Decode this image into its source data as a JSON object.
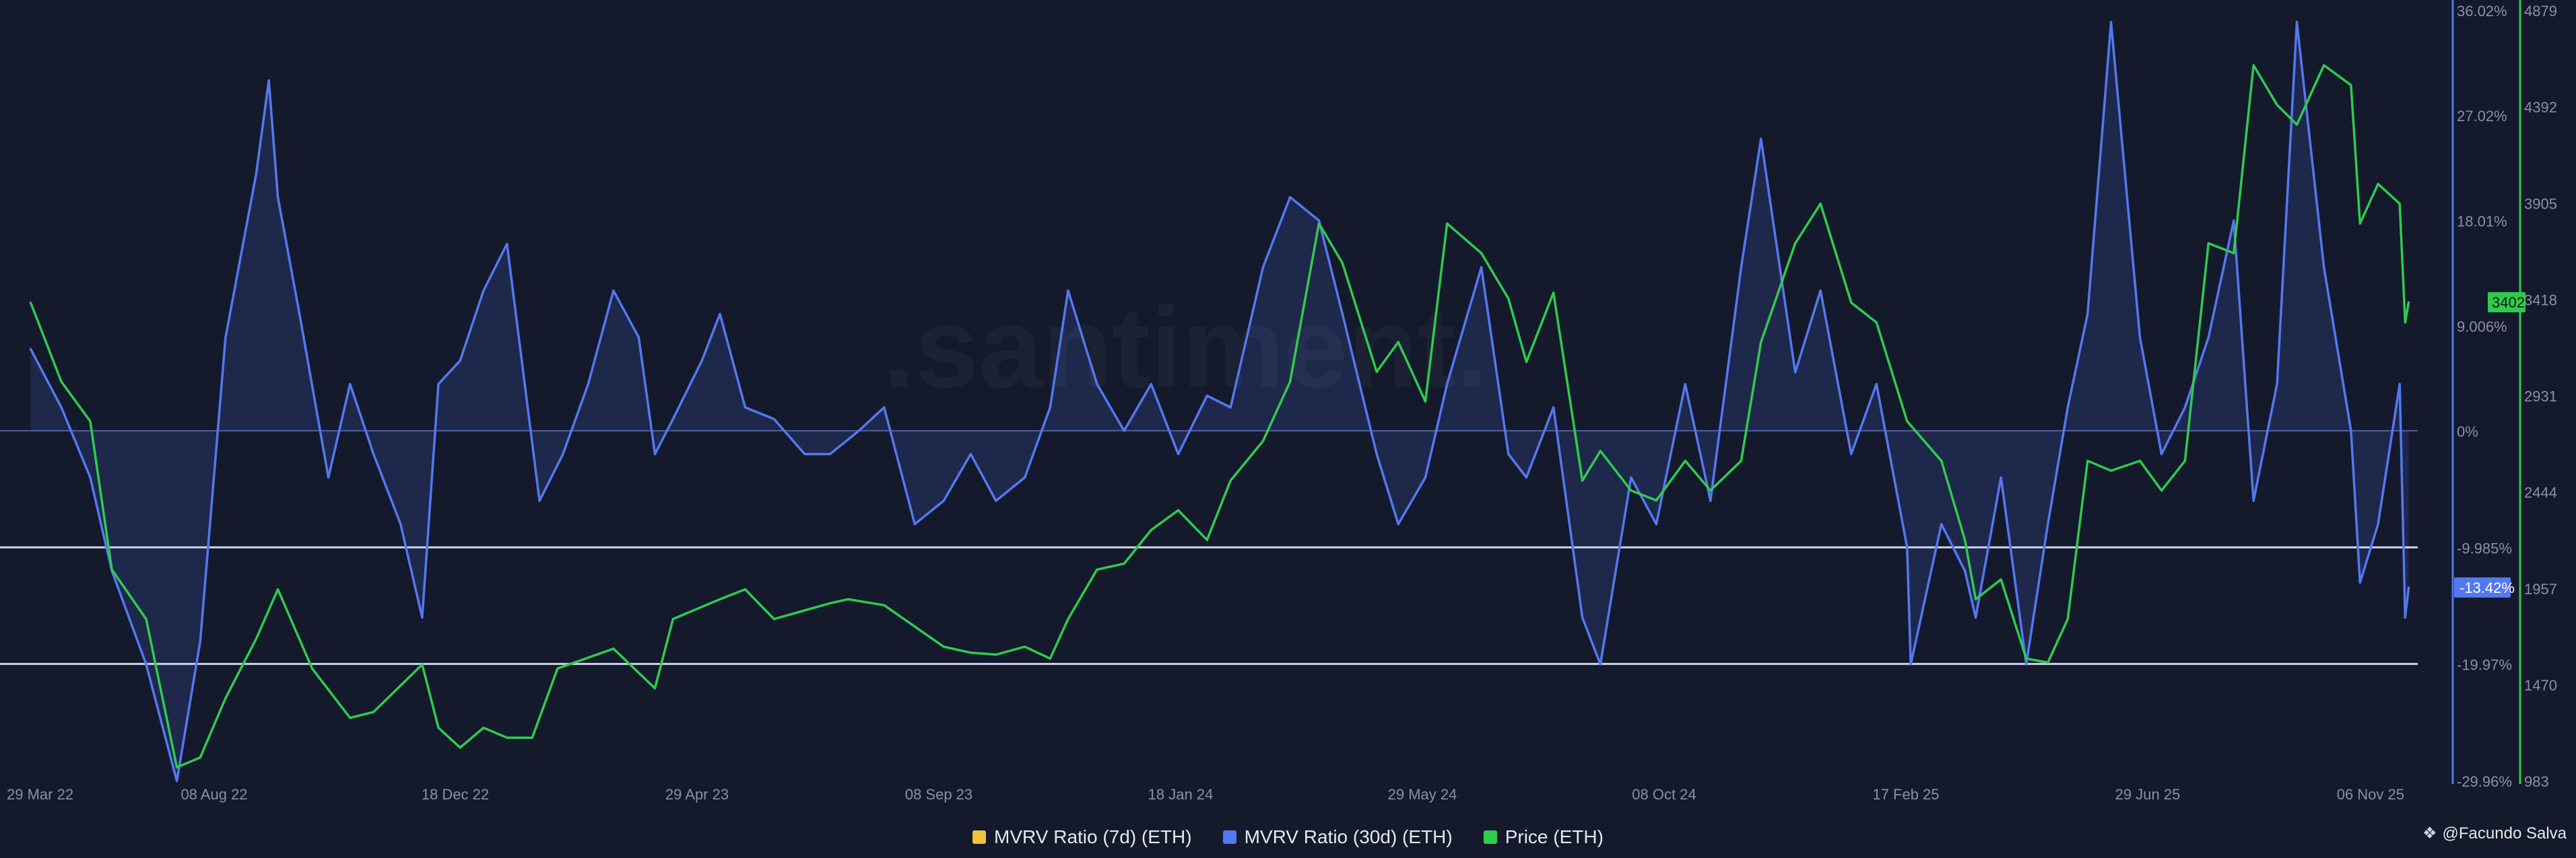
{
  "colors": {
    "background": "#141a2c",
    "mvrv7d": "#f3c23c",
    "mvrv30d": "#5478f0",
    "price": "#2fcb4e",
    "reference_line": "#cdd3ea",
    "axis_text": "#8b91a3"
  },
  "watermark": ".santiment.",
  "attribution": {
    "icon": "share-icon",
    "text": "@Facundo Salva"
  },
  "legend": [
    {
      "label": "MVRV Ratio (7d) (ETH)",
      "color": "#f3c23c"
    },
    {
      "label": "MVRV Ratio (30d) (ETH)",
      "color": "#5478f0"
    },
    {
      "label": "Price (ETH)",
      "color": "#2fcb4e"
    }
  ],
  "chart_data": {
    "type": "line",
    "title": "",
    "x_ticks": [
      "29 Mar 22",
      "08 Aug 22",
      "18 Dec 22",
      "29 Apr 23",
      "08 Sep 23",
      "18 Jan 24",
      "29 May 24",
      "08 Oct 24",
      "17 Feb 25",
      "29 Jun 25",
      "06 Nov 25"
    ],
    "mvrv_axis": {
      "ticks": [
        "36.02%",
        "27.02%",
        "18.01%",
        "9.006%",
        "0%",
        "-9.985%",
        "-19.97%",
        "-29.96%"
      ],
      "range": [
        -29.96,
        36.02
      ],
      "current_label": "-13.42%"
    },
    "price_axis": {
      "ticks": [
        "4879",
        "4392",
        "3905",
        "3418",
        "2931",
        "2444",
        "1957",
        "1470",
        "983"
      ],
      "range": [
        983,
        4879
      ],
      "current_label": "3402"
    },
    "reference_lines": [
      -9.985,
      -19.97
    ],
    "series": [
      {
        "name": "MVRV Ratio (30d) (ETH)",
        "axis": "mvrv",
        "x": [
          "2022-03-29",
          "2022-04-15",
          "2022-05-01",
          "2022-05-13",
          "2022-06-01",
          "2022-06-18",
          "2022-07-01",
          "2022-07-15",
          "2022-08-01",
          "2022-08-08",
          "2022-08-13",
          "2022-08-25",
          "2022-09-10",
          "2022-09-22",
          "2022-10-05",
          "2022-10-20",
          "2022-11-01",
          "2022-11-10",
          "2022-11-22",
          "2022-12-05",
          "2022-12-18",
          "2023-01-05",
          "2023-01-18",
          "2023-02-01",
          "2023-02-15",
          "2023-03-01",
          "2023-03-10",
          "2023-03-20",
          "2023-04-05",
          "2023-04-15",
          "2023-04-29",
          "2023-05-15",
          "2023-06-01",
          "2023-06-15",
          "2023-07-01",
          "2023-07-15",
          "2023-08-01",
          "2023-08-17",
          "2023-09-01",
          "2023-09-15",
          "2023-10-01",
          "2023-10-15",
          "2023-10-25",
          "2023-11-10",
          "2023-11-25",
          "2023-12-10",
          "2023-12-25",
          "2024-01-10",
          "2024-01-23",
          "2024-02-10",
          "2024-02-25",
          "2024-03-12",
          "2024-03-25",
          "2024-04-13",
          "2024-04-25",
          "2024-05-10",
          "2024-05-22",
          "2024-06-10",
          "2024-06-25",
          "2024-07-05",
          "2024-07-20",
          "2024-08-05",
          "2024-08-15",
          "2024-09-01",
          "2024-09-15",
          "2024-10-01",
          "2024-10-15",
          "2024-11-01",
          "2024-11-12",
          "2024-12-01",
          "2024-12-15",
          "2025-01-01",
          "2025-01-15",
          "2025-02-01",
          "2025-02-03",
          "2025-02-20",
          "2025-03-05",
          "2025-03-11",
          "2025-03-25",
          "2025-04-08",
          "2025-04-20",
          "2025-05-01",
          "2025-05-12",
          "2025-05-25",
          "2025-06-10",
          "2025-06-22",
          "2025-07-05",
          "2025-07-18",
          "2025-08-01",
          "2025-08-12",
          "2025-08-25",
          "2025-09-05",
          "2025-09-20",
          "2025-10-05",
          "2025-10-10",
          "2025-10-20",
          "2025-11-01",
          "2025-11-04",
          "2025-11-06"
        ],
        "values": [
          7,
          2,
          -4,
          -12,
          -20,
          -30,
          -18,
          8,
          22,
          30,
          20,
          10,
          -4,
          4,
          -2,
          -8,
          -16,
          4,
          6,
          12,
          16,
          -6,
          -2,
          4,
          12,
          8,
          -2,
          1,
          6,
          10,
          2,
          1,
          -2,
          -2,
          0,
          2,
          -8,
          -6,
          -2,
          -6,
          -4,
          2,
          12,
          4,
          0,
          4,
          -2,
          3,
          2,
          14,
          20,
          18,
          10,
          -2,
          -8,
          -4,
          4,
          14,
          -2,
          -4,
          2,
          -16,
          -20,
          -4,
          -8,
          4,
          -6,
          14,
          25,
          5,
          12,
          -2,
          4,
          -10,
          -20,
          -8,
          -12,
          -16,
          -4,
          -20,
          -8,
          2,
          10,
          35,
          8,
          -2,
          2,
          8,
          18,
          -6,
          4,
          35,
          14,
          0,
          -13,
          -8,
          4,
          -16,
          -13.42
        ]
      },
      {
        "name": "Price (ETH)",
        "axis": "price",
        "x": [
          "2022-03-29",
          "2022-04-15",
          "2022-05-01",
          "2022-05-13",
          "2022-06-01",
          "2022-06-18",
          "2022-07-01",
          "2022-07-15",
          "2022-08-01",
          "2022-08-13",
          "2022-09-01",
          "2022-09-22",
          "2022-10-05",
          "2022-11-01",
          "2022-11-10",
          "2022-11-22",
          "2022-12-05",
          "2022-12-18",
          "2023-01-01",
          "2023-01-15",
          "2023-02-15",
          "2023-03-10",
          "2023-03-20",
          "2023-04-15",
          "2023-04-29",
          "2023-05-15",
          "2023-06-15",
          "2023-06-25",
          "2023-07-15",
          "2023-08-17",
          "2023-09-01",
          "2023-09-15",
          "2023-10-01",
          "2023-10-15",
          "2023-10-25",
          "2023-11-10",
          "2023-11-25",
          "2023-12-10",
          "2023-12-25",
          "2024-01-10",
          "2024-01-23",
          "2024-02-10",
          "2024-02-25",
          "2024-03-12",
          "2024-03-25",
          "2024-04-13",
          "2024-04-25",
          "2024-05-10",
          "2024-05-22",
          "2024-06-10",
          "2024-06-25",
          "2024-07-05",
          "2024-07-20",
          "2024-08-05",
          "2024-08-15",
          "2024-09-01",
          "2024-09-15",
          "2024-10-01",
          "2024-10-15",
          "2024-11-01",
          "2024-11-12",
          "2024-12-01",
          "2024-12-15",
          "2025-01-01",
          "2025-01-15",
          "2025-02-01",
          "2025-02-20",
          "2025-03-05",
          "2025-03-11",
          "2025-03-25",
          "2025-04-08",
          "2025-04-20",
          "2025-05-01",
          "2025-05-12",
          "2025-05-25",
          "2025-06-10",
          "2025-06-22",
          "2025-07-05",
          "2025-07-18",
          "2025-08-01",
          "2025-08-12",
          "2025-08-25",
          "2025-09-05",
          "2025-09-20",
          "2025-10-05",
          "2025-10-10",
          "2025-10-20",
          "2025-11-01",
          "2025-11-04",
          "2025-11-06"
        ],
        "values": [
          3400,
          3000,
          2800,
          2050,
          1800,
          1050,
          1100,
          1400,
          1700,
          1950,
          1550,
          1300,
          1330,
          1570,
          1250,
          1150,
          1250,
          1200,
          1200,
          1550,
          1650,
          1450,
          1800,
          1900,
          1950,
          1800,
          1880,
          1900,
          1870,
          1660,
          1630,
          1620,
          1660,
          1600,
          1800,
          2050,
          2080,
          2250,
          2350,
          2200,
          2500,
          2700,
          3000,
          3800,
          3600,
          3050,
          3200,
          2900,
          3800,
          3650,
          3420,
          3100,
          3450,
          2500,
          2650,
          2450,
          2400,
          2600,
          2450,
          2600,
          3200,
          3700,
          3900,
          3400,
          3300,
          2800,
          2600,
          2200,
          1900,
          2000,
          1600,
          1580,
          1800,
          2600,
          2550,
          2600,
          2450,
          2600,
          3700,
          3650,
          4600,
          4400,
          4300,
          4600,
          4500,
          3800,
          4000,
          3900,
          3300,
          3402
        ]
      }
    ]
  }
}
